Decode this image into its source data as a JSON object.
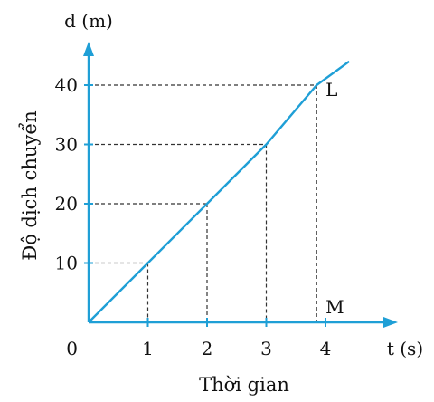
{
  "chart_data": {
    "type": "line",
    "x_unit_label": "t (s)",
    "y_unit_label": "d (m)",
    "xlabel": "Thời gian",
    "ylabel": "Độ dịch chuyển",
    "origin_label": "0",
    "x_ticks": [
      1,
      2,
      3,
      4
    ],
    "y_ticks": [
      10,
      20,
      30,
      40
    ],
    "xlim": [
      0,
      4.4
    ],
    "ylim": [
      0,
      44
    ],
    "series": [
      {
        "x": [
          0,
          1,
          2,
          3,
          3.85,
          4.4
        ],
        "y": [
          0,
          10,
          20,
          30,
          40,
          44
        ]
      }
    ],
    "guides": [
      {
        "x": 1,
        "y": 10
      },
      {
        "x": 2,
        "y": 20
      },
      {
        "x": 3,
        "y": 30
      },
      {
        "x": 3.85,
        "y": 40
      }
    ],
    "annotations": [
      {
        "text": "L",
        "x": 3.85,
        "y": 40
      },
      {
        "text": "M",
        "x": 3.85,
        "y": 0
      }
    ],
    "colors": {
      "axis": "#1f9fd6",
      "line": "#1f9fd6"
    }
  }
}
